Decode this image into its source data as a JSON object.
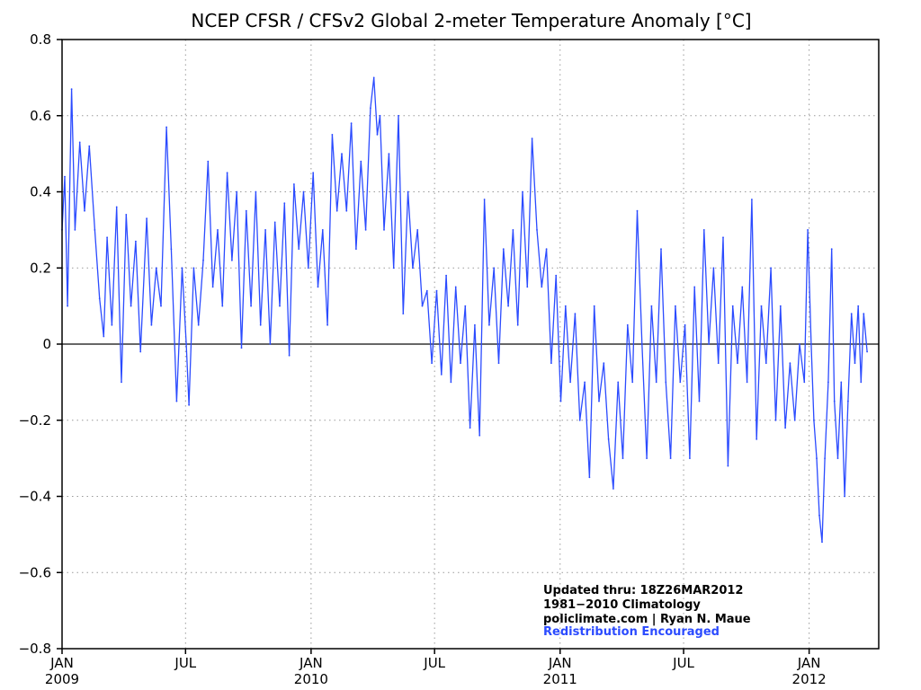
{
  "chart_data": {
    "type": "line",
    "title": "NCEP CFSR / CFSv2 Global 2-meter Temperature Anomaly [°C]",
    "xlabel": "",
    "ylabel": "",
    "ylim": [
      -0.8,
      0.8
    ],
    "xlim": [
      "2009-01-01",
      "2012-04-12"
    ],
    "yticks": [
      {
        "value": 0.8,
        "label": "0.8"
      },
      {
        "value": 0.6,
        "label": "0.6"
      },
      {
        "value": 0.4,
        "label": "0.4"
      },
      {
        "value": 0.2,
        "label": "0.2"
      },
      {
        "value": 0.0,
        "label": "0"
      },
      {
        "value": -0.2,
        "label": "−0.2"
      },
      {
        "value": -0.4,
        "label": "−0.4"
      },
      {
        "value": -0.6,
        "label": "−0.6"
      },
      {
        "value": -0.8,
        "label": "−0.8"
      }
    ],
    "xticks": [
      {
        "date": "2009-01-01",
        "month": "JAN",
        "year": "2009"
      },
      {
        "date": "2009-07-01",
        "month": "JUL",
        "year": ""
      },
      {
        "date": "2010-01-01",
        "month": "JAN",
        "year": "2010"
      },
      {
        "date": "2010-07-01",
        "month": "JUL",
        "year": ""
      },
      {
        "date": "2011-01-01",
        "month": "JAN",
        "year": "2011"
      },
      {
        "date": "2011-07-01",
        "month": "JUL",
        "year": ""
      },
      {
        "date": "2012-01-01",
        "month": "JAN",
        "year": "2012"
      }
    ],
    "grid": true,
    "zero_line": true,
    "series": [
      {
        "name": "",
        "color": "#2b4bff",
        "points": [
          [
            "2009-01-01",
            0.3
          ],
          [
            "2009-01-05",
            0.44
          ],
          [
            "2009-01-09",
            0.1
          ],
          [
            "2009-01-15",
            0.67
          ],
          [
            "2009-01-20",
            0.3
          ],
          [
            "2009-01-27",
            0.53
          ],
          [
            "2009-02-03",
            0.35
          ],
          [
            "2009-02-10",
            0.52
          ],
          [
            "2009-02-18",
            0.3
          ],
          [
            "2009-02-25",
            0.12
          ],
          [
            "2009-03-03",
            0.02
          ],
          [
            "2009-03-08",
            0.28
          ],
          [
            "2009-03-15",
            0.05
          ],
          [
            "2009-03-22",
            0.36
          ],
          [
            "2009-03-29",
            -0.1
          ],
          [
            "2009-04-05",
            0.34
          ],
          [
            "2009-04-12",
            0.1
          ],
          [
            "2009-04-19",
            0.27
          ],
          [
            "2009-04-26",
            -0.02
          ],
          [
            "2009-05-05",
            0.33
          ],
          [
            "2009-05-12",
            0.05
          ],
          [
            "2009-05-19",
            0.2
          ],
          [
            "2009-05-26",
            0.1
          ],
          [
            "2009-06-03",
            0.57
          ],
          [
            "2009-06-10",
            0.25
          ],
          [
            "2009-06-18",
            -0.15
          ],
          [
            "2009-06-26",
            0.2
          ],
          [
            "2009-07-02",
            0.0
          ],
          [
            "2009-07-06",
            -0.16
          ],
          [
            "2009-07-13",
            0.2
          ],
          [
            "2009-07-20",
            0.05
          ],
          [
            "2009-07-27",
            0.22
          ],
          [
            "2009-08-03",
            0.48
          ],
          [
            "2009-08-10",
            0.15
          ],
          [
            "2009-08-17",
            0.3
          ],
          [
            "2009-08-24",
            0.1
          ],
          [
            "2009-08-31",
            0.45
          ],
          [
            "2009-09-07",
            0.22
          ],
          [
            "2009-09-14",
            0.4
          ],
          [
            "2009-09-21",
            -0.01
          ],
          [
            "2009-09-28",
            0.35
          ],
          [
            "2009-10-05",
            0.1
          ],
          [
            "2009-10-12",
            0.4
          ],
          [
            "2009-10-19",
            0.05
          ],
          [
            "2009-10-26",
            0.3
          ],
          [
            "2009-11-02",
            0.0
          ],
          [
            "2009-11-09",
            0.32
          ],
          [
            "2009-11-16",
            0.1
          ],
          [
            "2009-11-23",
            0.37
          ],
          [
            "2009-11-30",
            -0.03
          ],
          [
            "2009-12-07",
            0.42
          ],
          [
            "2009-12-14",
            0.25
          ],
          [
            "2009-12-21",
            0.4
          ],
          [
            "2009-12-28",
            0.2
          ],
          [
            "2010-01-04",
            0.45
          ],
          [
            "2010-01-11",
            0.15
          ],
          [
            "2010-01-18",
            0.3
          ],
          [
            "2010-01-25",
            0.05
          ],
          [
            "2010-02-01",
            0.55
          ],
          [
            "2010-02-08",
            0.35
          ],
          [
            "2010-02-15",
            0.5
          ],
          [
            "2010-02-22",
            0.35
          ],
          [
            "2010-03-01",
            0.58
          ],
          [
            "2010-03-08",
            0.25
          ],
          [
            "2010-03-15",
            0.48
          ],
          [
            "2010-03-22",
            0.3
          ],
          [
            "2010-03-29",
            0.62
          ],
          [
            "2010-04-03",
            0.7
          ],
          [
            "2010-04-08",
            0.55
          ],
          [
            "2010-04-12",
            0.6
          ],
          [
            "2010-04-18",
            0.3
          ],
          [
            "2010-04-25",
            0.5
          ],
          [
            "2010-05-02",
            0.2
          ],
          [
            "2010-05-09",
            0.6
          ],
          [
            "2010-05-16",
            0.08
          ],
          [
            "2010-05-23",
            0.4
          ],
          [
            "2010-05-30",
            0.2
          ],
          [
            "2010-06-06",
            0.3
          ],
          [
            "2010-06-13",
            0.1
          ],
          [
            "2010-06-20",
            0.14
          ],
          [
            "2010-06-27",
            -0.05
          ],
          [
            "2010-07-04",
            0.14
          ],
          [
            "2010-07-11",
            -0.08
          ],
          [
            "2010-07-18",
            0.18
          ],
          [
            "2010-07-25",
            -0.1
          ],
          [
            "2010-08-01",
            0.15
          ],
          [
            "2010-08-08",
            -0.05
          ],
          [
            "2010-08-15",
            0.1
          ],
          [
            "2010-08-22",
            -0.22
          ],
          [
            "2010-08-29",
            0.05
          ],
          [
            "2010-09-05",
            -0.24
          ],
          [
            "2010-09-12",
            0.38
          ],
          [
            "2010-09-19",
            0.05
          ],
          [
            "2010-09-26",
            0.2
          ],
          [
            "2010-10-03",
            -0.05
          ],
          [
            "2010-10-10",
            0.25
          ],
          [
            "2010-10-17",
            0.1
          ],
          [
            "2010-10-24",
            0.3
          ],
          [
            "2010-10-31",
            0.05
          ],
          [
            "2010-11-07",
            0.4
          ],
          [
            "2010-11-14",
            0.15
          ],
          [
            "2010-11-21",
            0.54
          ],
          [
            "2010-11-28",
            0.3
          ],
          [
            "2010-12-05",
            0.15
          ],
          [
            "2010-12-12",
            0.25
          ],
          [
            "2010-12-19",
            -0.05
          ],
          [
            "2010-12-26",
            0.18
          ],
          [
            "2011-01-02",
            -0.15
          ],
          [
            "2011-01-09",
            0.1
          ],
          [
            "2011-01-16",
            -0.1
          ],
          [
            "2011-01-23",
            0.08
          ],
          [
            "2011-01-30",
            -0.2
          ],
          [
            "2011-02-06",
            -0.1
          ],
          [
            "2011-02-13",
            -0.35
          ],
          [
            "2011-02-20",
            0.1
          ],
          [
            "2011-02-27",
            -0.15
          ],
          [
            "2011-03-06",
            -0.05
          ],
          [
            "2011-03-13",
            -0.25
          ],
          [
            "2011-03-20",
            -0.38
          ],
          [
            "2011-03-27",
            -0.1
          ],
          [
            "2011-04-03",
            -0.3
          ],
          [
            "2011-04-10",
            0.05
          ],
          [
            "2011-04-17",
            -0.1
          ],
          [
            "2011-04-24",
            0.35
          ],
          [
            "2011-05-01",
            0.0
          ],
          [
            "2011-05-08",
            -0.3
          ],
          [
            "2011-05-15",
            0.1
          ],
          [
            "2011-05-22",
            -0.1
          ],
          [
            "2011-05-29",
            0.25
          ],
          [
            "2011-06-05",
            -0.1
          ],
          [
            "2011-06-12",
            -0.3
          ],
          [
            "2011-06-19",
            0.1
          ],
          [
            "2011-06-26",
            -0.1
          ],
          [
            "2011-07-03",
            0.05
          ],
          [
            "2011-07-10",
            -0.3
          ],
          [
            "2011-07-17",
            0.15
          ],
          [
            "2011-07-24",
            -0.15
          ],
          [
            "2011-07-31",
            0.3
          ],
          [
            "2011-08-07",
            0.0
          ],
          [
            "2011-08-14",
            0.2
          ],
          [
            "2011-08-21",
            -0.05
          ],
          [
            "2011-08-28",
            0.28
          ],
          [
            "2011-09-04",
            -0.32
          ],
          [
            "2011-09-11",
            0.1
          ],
          [
            "2011-09-18",
            -0.05
          ],
          [
            "2011-09-25",
            0.15
          ],
          [
            "2011-10-02",
            -0.1
          ],
          [
            "2011-10-09",
            0.38
          ],
          [
            "2011-10-16",
            -0.25
          ],
          [
            "2011-10-23",
            0.1
          ],
          [
            "2011-10-30",
            -0.05
          ],
          [
            "2011-11-06",
            0.2
          ],
          [
            "2011-11-13",
            -0.2
          ],
          [
            "2011-11-20",
            0.1
          ],
          [
            "2011-11-27",
            -0.22
          ],
          [
            "2011-12-04",
            -0.05
          ],
          [
            "2011-12-11",
            -0.2
          ],
          [
            "2011-12-18",
            0.0
          ],
          [
            "2011-12-25",
            -0.1
          ],
          [
            "2011-12-30",
            0.3
          ],
          [
            "2012-01-04",
            0.0
          ],
          [
            "2012-01-08",
            -0.2
          ],
          [
            "2012-01-12",
            -0.3
          ],
          [
            "2012-01-16",
            -0.45
          ],
          [
            "2012-01-20",
            -0.52
          ],
          [
            "2012-01-24",
            -0.3
          ],
          [
            "2012-01-29",
            -0.1
          ],
          [
            "2012-02-03",
            0.25
          ],
          [
            "2012-02-07",
            -0.15
          ],
          [
            "2012-02-12",
            -0.3
          ],
          [
            "2012-02-17",
            -0.1
          ],
          [
            "2012-02-22",
            -0.4
          ],
          [
            "2012-02-27",
            -0.15
          ],
          [
            "2012-03-03",
            0.08
          ],
          [
            "2012-03-08",
            -0.05
          ],
          [
            "2012-03-13",
            0.1
          ],
          [
            "2012-03-17",
            -0.1
          ],
          [
            "2012-03-21",
            0.08
          ],
          [
            "2012-03-26",
            -0.02
          ]
        ]
      }
    ],
    "annotations": {
      "updated": "Updated thru: 18Z26MAR2012",
      "climatology": "1981−2010 Climatology",
      "credit": "policlimate.com | Ryan N. Maue",
      "redistribution": "Redistribution Encouraged"
    }
  }
}
